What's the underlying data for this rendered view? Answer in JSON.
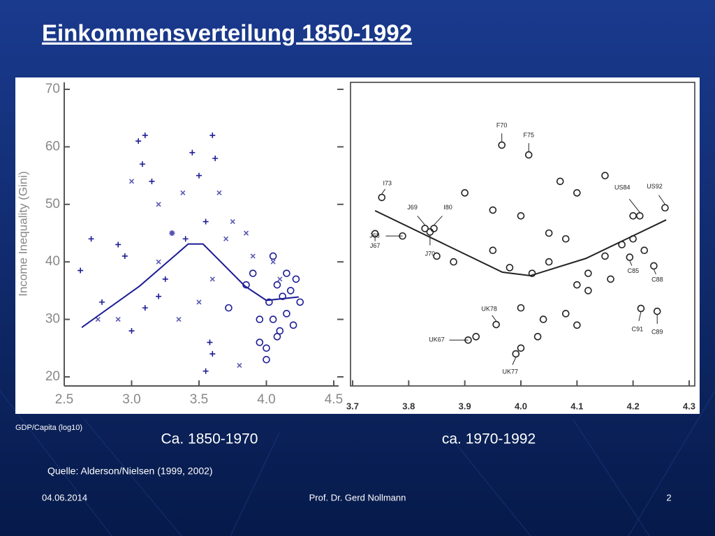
{
  "slide": {
    "title": "Einkommensverteilung 1850-1992",
    "source": "Quelle: Alderson/Nielsen (1999, 2002)",
    "footer_date": "04.06.2014",
    "footer_author": "Prof. Dr. Gerd Nollmann",
    "page_number": "2"
  },
  "chart_data": [
    {
      "type": "scatter",
      "title": "Ca. 1850-1970",
      "x_label": "GDP/Capita (log10)",
      "y_label": "Income Inequality (Gini)",
      "xlim": [
        2.5,
        4.5
      ],
      "xticks": [
        2.5,
        {
          "value": 3,
          "label": "3.0"
        },
        3.5,
        {
          "value": 4,
          "label": "4.0"
        },
        4.5
      ],
      "ylim": [
        20,
        70
      ],
      "yticks": [
        20,
        30,
        40,
        50,
        60,
        70
      ],
      "series": [
        {
          "marker": "+",
          "color": "#1c1c96",
          "x": [
            2.62,
            2.7,
            2.78,
            2.9,
            2.95,
            3.05,
            3.1,
            3.08,
            3.15,
            3.2,
            3.3,
            3.4,
            3.45,
            3.5,
            3.55,
            3.6,
            3.62,
            3.58,
            3.6,
            3.55,
            3.1,
            3.0,
            3.25
          ],
          "y": [
            38.5,
            44,
            33,
            43,
            41,
            61,
            62,
            57,
            54,
            34,
            45,
            44,
            59,
            55,
            47,
            62,
            58,
            26,
            24,
            21,
            32,
            28,
            37
          ]
        },
        {
          "marker": "x",
          "color": "#5a5ab4",
          "x": [
            2.75,
            2.9,
            3.0,
            3.2,
            3.3,
            3.38,
            3.5,
            3.6,
            3.65,
            3.7,
            3.75,
            3.8,
            3.85,
            3.9,
            4.05,
            4.1,
            3.35,
            3.2
          ],
          "y": [
            30,
            30,
            54,
            50,
            45,
            52,
            33,
            37,
            52,
            44,
            47,
            22,
            45,
            41,
            40,
            37,
            30,
            40
          ]
        },
        {
          "marker": "o",
          "color": "#1c1c96",
          "x": [
            3.72,
            3.85,
            3.9,
            3.95,
            4.0,
            4.0,
            4.02,
            4.05,
            4.08,
            4.1,
            4.12,
            4.15,
            4.18,
            4.2,
            4.22,
            4.25,
            3.95,
            4.05,
            4.15,
            4.08
          ],
          "y": [
            32,
            36,
            38,
            30,
            25,
            23,
            33,
            30,
            36,
            28,
            34,
            31,
            35,
            29,
            37,
            33,
            26,
            41,
            38,
            27
          ]
        },
        {
          "marker": "line",
          "color": "#1c1c96",
          "x": [
            2.63,
            3.06,
            3.42,
            3.53,
            3.84,
            4.0,
            4.24
          ],
          "y": [
            28.6,
            35.8,
            43.1,
            43.1,
            35.8,
            33.3,
            33.9
          ]
        }
      ]
    },
    {
      "type": "scatter",
      "title": "ca. 1970-1992",
      "xlim": [
        3.7,
        4.3
      ],
      "xticks": [
        3.7,
        3.8,
        3.9,
        {
          "value": 4,
          "label": "4.0"
        },
        4.1,
        4.2,
        4.3
      ],
      "ylim": [
        20,
        70
      ],
      "series": [
        {
          "marker": "o",
          "color": "#222222",
          "x": [
            3.9,
            3.95,
            4.0,
            4.07,
            4.1,
            4.15,
            4.2,
            4.05,
            4.08,
            3.95,
            3.98,
            4.02,
            4.05,
            4.1,
            4.12,
            4.15,
            4.18,
            4.2,
            4.0,
            4.04,
            4.08,
            4.1,
            3.92,
            4.03,
            4.0,
            3.88,
            3.85,
            4.12,
            4.16,
            4.22
          ],
          "y": [
            52,
            49,
            48,
            54,
            52,
            55,
            48,
            45,
            44,
            42,
            39,
            38,
            40,
            36,
            38,
            41,
            43,
            44,
            32,
            30,
            31,
            29,
            27,
            27,
            25,
            40,
            41,
            35,
            37,
            42
          ]
        },
        {
          "marker": "line",
          "color": "#222222",
          "x": [
            3.74,
            3.967,
            4.017,
            4.116,
            4.259
          ],
          "y": [
            48.9,
            38.2,
            37.6,
            40.6,
            47.3
          ]
        }
      ],
      "labeled_points": [
        {
          "label": "F70",
          "x": 3.966,
          "y": 60.3
        },
        {
          "label": "F75",
          "x": 4.014,
          "y": 58.6
        },
        {
          "label": "I73",
          "x": 3.752,
          "y": 51.2
        },
        {
          "label": "J69",
          "x": 3.829,
          "y": 45.8
        },
        {
          "label": "I80",
          "x": 3.845,
          "y": 45.8
        },
        {
          "label": "J67",
          "x": 3.74,
          "y": 44.9
        },
        {
          "label": "J68",
          "x": 3.789,
          "y": 44.5
        },
        {
          "label": "J70",
          "x": 3.838,
          "y": 45.2
        },
        {
          "label": "US84",
          "x": 4.212,
          "y": 48.0
        },
        {
          "label": "US92",
          "x": 4.257,
          "y": 49.4
        },
        {
          "label": "C85",
          "x": 4.194,
          "y": 40.8
        },
        {
          "label": "C88",
          "x": 4.237,
          "y": 39.3
        },
        {
          "label": "UK78",
          "x": 3.956,
          "y": 29.1
        },
        {
          "label": "UK67",
          "x": 3.906,
          "y": 26.4
        },
        {
          "label": "UK77",
          "x": 3.991,
          "y": 24.0
        },
        {
          "label": "C91",
          "x": 4.214,
          "y": 31.9
        },
        {
          "label": "C89",
          "x": 4.243,
          "y": 31.4
        }
      ]
    }
  ]
}
